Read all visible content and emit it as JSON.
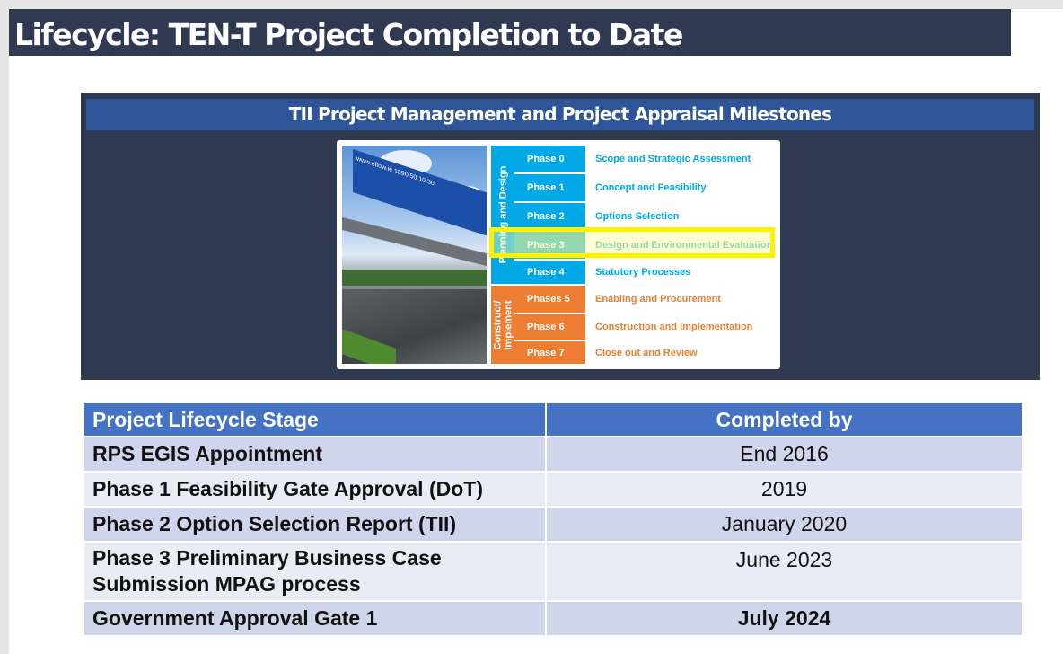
{
  "title": "Lifecycle: TEN-T Project Completion to Date",
  "panel": {
    "title": "TII Project Management and Project Appraisal Milestones",
    "groups": [
      {
        "label": "Planning and Design",
        "color": "#00a9e6"
      },
      {
        "label": "Construct/ Implement",
        "color": "#ec7d31"
      }
    ],
    "phases": [
      {
        "phase": "Phase 0",
        "desc": "Scope and Strategic Assessment",
        "group": 0
      },
      {
        "phase": "Phase 1",
        "desc": "Concept and Feasibility",
        "group": 0
      },
      {
        "phase": "Phase 2",
        "desc": "Options Selection",
        "group": 0
      },
      {
        "phase": "Phase 3",
        "desc": "Design and Environmental Evaluation",
        "group": 0,
        "highlighted": true
      },
      {
        "phase": "Phase 4",
        "desc": "Statutory Processes",
        "group": 0
      },
      {
        "phase": "Phases 5",
        "desc": "Enabling and Procurement",
        "group": 1
      },
      {
        "phase": "Phase 6",
        "desc": "Construction and Implementation",
        "group": 1
      },
      {
        "phase": "Phase 7",
        "desc": "Close out and Review",
        "group": 1
      }
    ],
    "highlight_color": "#fff200",
    "photo_sign": "www.eflow.ie 1890 50 10 50"
  },
  "table": {
    "headers": [
      "Project Lifecycle Stage",
      "Completed by"
    ],
    "rows": [
      [
        "RPS EGIS Appointment",
        "End 2016"
      ],
      [
        "Phase 1 Feasibility Gate Approval (DoT)",
        "2019"
      ],
      [
        "Phase 2 Option Selection Report (TII)",
        "January 2020"
      ],
      [
        "Phase 3 Preliminary Business Case Submission MPAG process",
        "June 2023"
      ],
      [
        "Government Approval Gate 1",
        "July 2024"
      ]
    ]
  }
}
